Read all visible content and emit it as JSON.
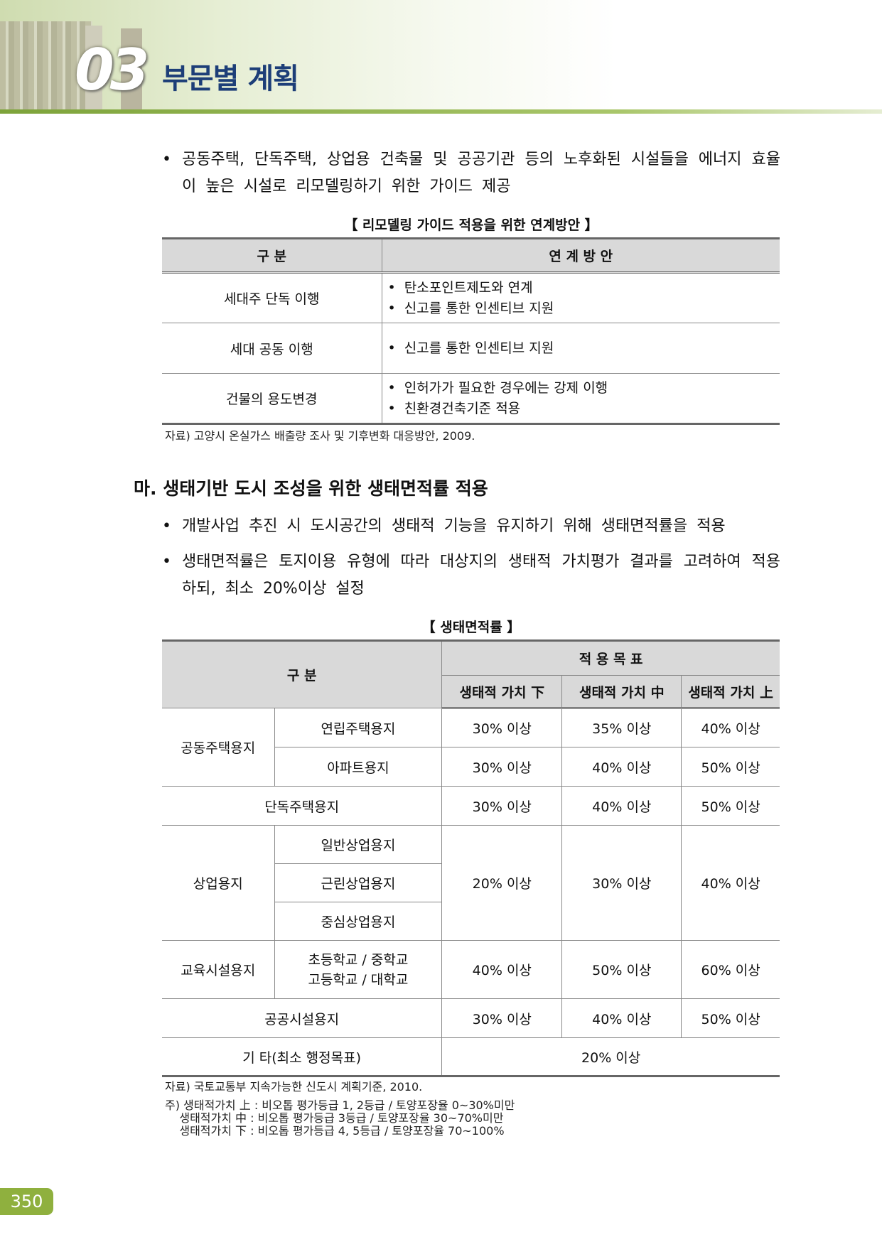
{
  "header": {
    "chapter_number": "03",
    "chapter_title": "부문별 계획",
    "accent_color": "#8fb03e",
    "title_color": "#1d3e78"
  },
  "intro_bullet": "공동주택, 단독주택, 상업용 건축물 및 공공기관 등의 노후화된 시설들을 에너지 효율이 높은 시설로 리모델링하기 위한 가이드 제공",
  "table1": {
    "caption": "【 리모델링 가이드 적용을 위한 연계방안 】",
    "headers": [
      "구  분",
      "연 계 방 안"
    ],
    "rows": [
      {
        "category": "세대주 단독 이행",
        "items": [
          "탄소포인트제도와 연계",
          "신고를 통한 인센티브 지원"
        ]
      },
      {
        "category": "세대 공동 이행",
        "items": [
          "신고를 통한 인센티브 지원"
        ]
      },
      {
        "category": "건물의 용도변경",
        "items": [
          "인허가가 필요한 경우에는 강제 이행",
          "친환경건축기준 적용"
        ]
      }
    ],
    "source": "자료) 고양시 온실가스 배출량 조사 및 기후변화 대응방안, 2009."
  },
  "section": {
    "heading": "마. 생태기반 도시 조성을 위한 생태면적률 적용",
    "bullets": [
      "개발사업 추진 시 도시공간의 생태적 기능을 유지하기 위해 생태면적률을 적용",
      "생태면적률은 토지이용 유형에 따라 대상지의 생태적 가치평가 결과를 고려하여 적용하되, 최소 20%이상 설정"
    ]
  },
  "table2": {
    "caption": "【 생태면적률 】",
    "header_category": "구  분",
    "header_target": "적 용 목 표",
    "subheaders": [
      "생태적 가치 下",
      "생태적 가치 中",
      "생태적 가치 上"
    ],
    "groups": {
      "apartment": "공동주택용지",
      "commercial": "상업용지",
      "education": "교육시설용지"
    },
    "rows": {
      "rowhouse": {
        "label": "연립주택용지",
        "values": [
          "30% 이상",
          "35% 이상",
          "40% 이상"
        ]
      },
      "apt": {
        "label": "아파트용지",
        "values": [
          "30% 이상",
          "40% 이상",
          "50% 이상"
        ]
      },
      "detached": {
        "label": "단독주택용지",
        "values": [
          "30% 이상",
          "40% 이상",
          "50% 이상"
        ]
      },
      "commercial": {
        "labels": [
          "일반상업용지",
          "근린상업용지",
          "중심상업용지"
        ],
        "values": [
          "20% 이상",
          "30% 이상",
          "40% 이상"
        ]
      },
      "education": {
        "label_line1": "초등학교 / 중학교",
        "label_line2": "고등학교 / 대학교",
        "values": [
          "40% 이상",
          "50% 이상",
          "60% 이상"
        ]
      },
      "public": {
        "label": "공공시설용지",
        "values": [
          "30% 이상",
          "40% 이상",
          "50% 이상"
        ]
      },
      "other": {
        "label": "기 타(최소 행정목표)",
        "value": "20% 이상"
      }
    },
    "source": "자료) 국토교통부 지속가능한 신도시 계획기준, 2010.",
    "notes": [
      "주) 생태적가치 上 : 비오톱 평가등급 1, 2등급 / 토양포장율 0~30%미만",
      "    생태적가치 中 : 비오톱 평가등급 3등급 / 토양포장율 30~70%미만",
      "    생태적가치 下 : 비오톱 평가등급 4, 5등급 / 토양포장율 70~100%"
    ]
  },
  "page_number": "350"
}
